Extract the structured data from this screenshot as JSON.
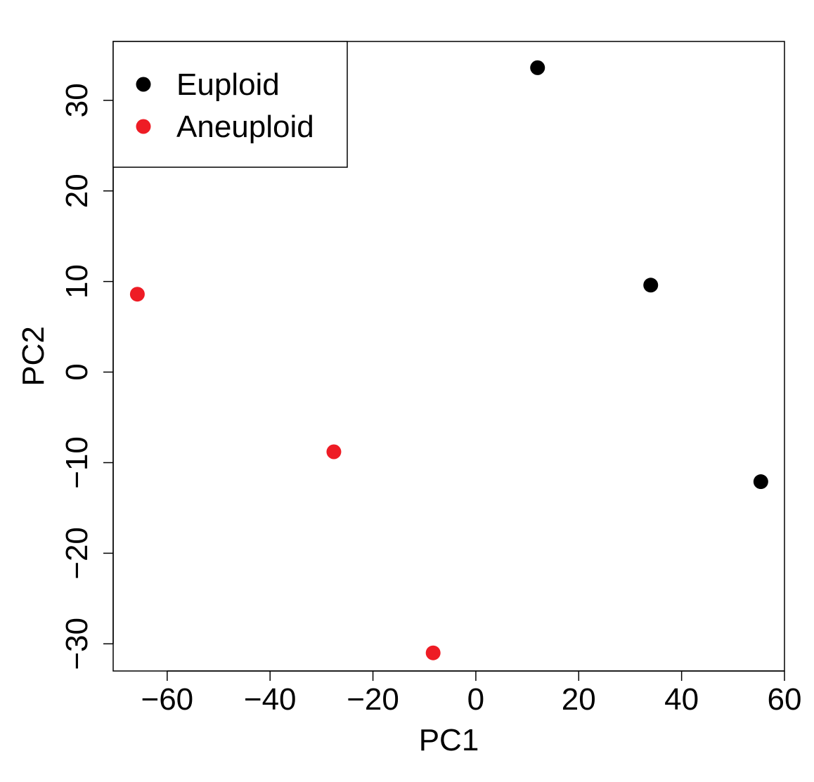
{
  "chart_data": {
    "type": "scatter",
    "title": "",
    "xlabel": "PC1",
    "ylabel": "PC2",
    "xlim": [
      -70.5,
      60
    ],
    "ylim": [
      -33,
      36.5
    ],
    "x_ticks": [
      -60,
      -40,
      -20,
      0,
      20,
      40,
      60
    ],
    "y_ticks": [
      -30,
      -20,
      -10,
      0,
      10,
      20,
      30
    ],
    "x_tick_labels": [
      "−60",
      "−40",
      "−20",
      "0",
      "20",
      "40",
      "60"
    ],
    "y_tick_labels": [
      "−30",
      "−20",
      "−10",
      "0",
      "10",
      "20",
      "30"
    ],
    "grid": false,
    "legend_position": "top-left",
    "series": [
      {
        "name": "Euploid",
        "color": "#000000",
        "points": [
          {
            "x": 12,
            "y": 33.6
          },
          {
            "x": 34,
            "y": 9.6
          },
          {
            "x": 55.4,
            "y": -12.1
          }
        ]
      },
      {
        "name": "Aneuploid",
        "color": "#ee1c25",
        "points": [
          {
            "x": -65.8,
            "y": 8.6
          },
          {
            "x": -27.6,
            "y": -8.8
          },
          {
            "x": -8.3,
            "y": -31
          }
        ]
      }
    ]
  }
}
